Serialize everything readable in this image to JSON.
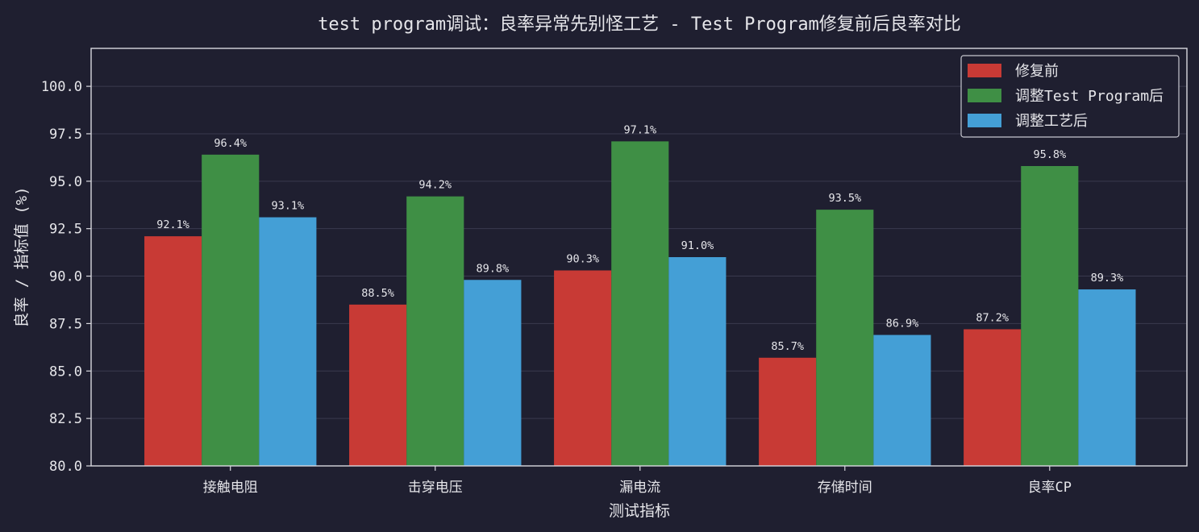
{
  "chart_data": {
    "type": "bar",
    "title": "test program调试：良率异常先别怪工艺 - Test Program修复前后良率对比",
    "xlabel": "测试指标",
    "ylabel": "良率 / 指标值 (%)",
    "ylim": [
      80.0,
      102.0
    ],
    "yticks": [
      "80.0",
      "82.5",
      "85.0",
      "87.5",
      "90.0",
      "92.5",
      "95.0",
      "97.5",
      "100.0"
    ],
    "grid": true,
    "legend_position": "top-right",
    "categories": [
      "接触电阻",
      "击穿电压",
      "漏电流",
      "存储时间",
      "良率CP"
    ],
    "series": [
      {
        "name": "修复前",
        "color": "#c83a35",
        "values": [
          92.1,
          88.5,
          90.3,
          85.7,
          87.2
        ],
        "labels": [
          "92.1%",
          "88.5%",
          "90.3%",
          "85.7%",
          "87.2%"
        ]
      },
      {
        "name": "调整Test Program后",
        "color": "#3f8f45",
        "values": [
          96.4,
          94.2,
          97.1,
          93.5,
          95.8
        ],
        "labels": [
          "96.4%",
          "94.2%",
          "97.1%",
          "93.5%",
          "95.8%"
        ]
      },
      {
        "name": "调整工艺后",
        "color": "#449fd6",
        "values": [
          93.1,
          89.8,
          91.0,
          86.9,
          89.3
        ],
        "labels": [
          "93.1%",
          "89.8%",
          "91.0%",
          "86.9%",
          "89.3%"
        ]
      }
    ]
  }
}
